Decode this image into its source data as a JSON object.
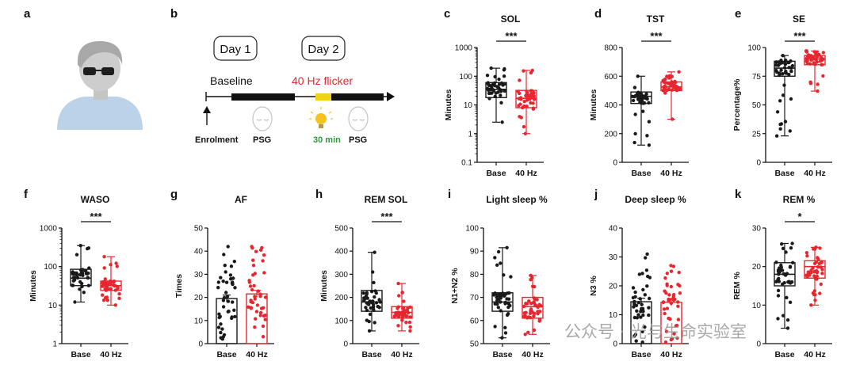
{
  "panel_letters": [
    "a",
    "b",
    "c",
    "d",
    "e",
    "f",
    "g",
    "h",
    "i",
    "j",
    "k"
  ],
  "colors": {
    "base": "#1a1a1a",
    "flicker": "#e8262f",
    "sleep_text": "#2a9a3a",
    "bar_yellow": "#f2d21a",
    "skin": "#c5c5c5",
    "shirt": "#bcd2e8"
  },
  "schematic": {
    "day1": "Day 1",
    "day2": "Day 2",
    "baseline": "Baseline",
    "flicker": "40 Hz flicker",
    "enrolment": "Enrolment",
    "psg1": "PSG",
    "duration": "30 min",
    "psg2": "PSG"
  },
  "watermark": "公众号 · 光与生命实验室",
  "chart_data": [
    {
      "panel": "c",
      "type": "box",
      "title": "SOL",
      "ylabel": "Minutes",
      "scale": "log",
      "ylim": [
        0.1,
        1000
      ],
      "yticks": [
        "0.1",
        "1",
        "10",
        "100",
        "1000"
      ],
      "categories": [
        "Base",
        "40 Hz"
      ],
      "significance": "***",
      "series": [
        {
          "name": "Base",
          "min": 2.5,
          "q1": 18,
          "median": 35,
          "q3": 60,
          "max": 190
        },
        {
          "name": "40 Hz",
          "min": 1.0,
          "q1": 8,
          "median": 17,
          "q3": 32,
          "max": 160
        }
      ]
    },
    {
      "panel": "d",
      "type": "box",
      "title": "TST",
      "ylabel": "Minutes",
      "scale": "linear",
      "ylim": [
        0,
        800
      ],
      "yticks": [
        "0",
        "200",
        "400",
        "600",
        "800"
      ],
      "categories": [
        "Base",
        "40 Hz"
      ],
      "significance": "***",
      "series": [
        {
          "name": "Base",
          "min": 120,
          "q1": 410,
          "median": 460,
          "q3": 490,
          "max": 600
        },
        {
          "name": "40 Hz",
          "min": 300,
          "q1": 500,
          "median": 525,
          "q3": 560,
          "max": 630
        }
      ]
    },
    {
      "panel": "e",
      "type": "box",
      "title": "SE",
      "ylabel": "Percentage%",
      "scale": "linear",
      "ylim": [
        0,
        100
      ],
      "yticks": [
        "0",
        "25",
        "50",
        "75",
        "100"
      ],
      "categories": [
        "Base",
        "40 Hz"
      ],
      "significance": "***",
      "series": [
        {
          "name": "Base",
          "min": 23,
          "q1": 75,
          "median": 82,
          "q3": 88,
          "max": 93
        },
        {
          "name": "40 Hz",
          "min": 62,
          "q1": 85,
          "median": 90,
          "q3": 93,
          "max": 97
        }
      ]
    },
    {
      "panel": "f",
      "type": "box",
      "title": "WASO",
      "ylabel": "Minutes",
      "scale": "log",
      "ylim": [
        1,
        1000
      ],
      "yticks": [
        "1",
        "10",
        "100",
        "1000"
      ],
      "categories": [
        "Base",
        "40 Hz"
      ],
      "significance": "***",
      "series": [
        {
          "name": "Base",
          "min": 12,
          "q1": 32,
          "median": 50,
          "q3": 85,
          "max": 350
        },
        {
          "name": "40 Hz",
          "min": 10,
          "q1": 24,
          "median": 32,
          "q3": 42,
          "max": 180
        }
      ]
    },
    {
      "panel": "g",
      "type": "bar",
      "title": "AF",
      "ylabel": "Times",
      "scale": "linear",
      "ylim": [
        0,
        50
      ],
      "yticks": [
        "0",
        "10",
        "20",
        "30",
        "40",
        "50"
      ],
      "categories": [
        "Base",
        "40 Hz"
      ],
      "significance": "",
      "series": [
        {
          "name": "Base",
          "mean": 19.5,
          "sem": 1.5,
          "min": 2,
          "max": 42
        },
        {
          "name": "40 Hz",
          "mean": 21.5,
          "sem": 1.5,
          "min": 3,
          "max": 42
        }
      ]
    },
    {
      "panel": "h",
      "type": "box",
      "title": "REM SOL",
      "ylabel": "Minutes",
      "scale": "linear",
      "ylim": [
        0,
        500
      ],
      "yticks": [
        "0",
        "100",
        "200",
        "300",
        "400",
        "500"
      ],
      "categories": [
        "Base",
        "40 Hz"
      ],
      "significance": "***",
      "series": [
        {
          "name": "Base",
          "min": 55,
          "q1": 140,
          "median": 180,
          "q3": 230,
          "max": 395
        },
        {
          "name": "40 Hz",
          "min": 55,
          "q1": 110,
          "median": 135,
          "q3": 160,
          "max": 260
        }
      ]
    },
    {
      "panel": "i",
      "type": "box",
      "title": "Light sleep %",
      "ylabel": "N1+N2 %",
      "scale": "linear",
      "ylim": [
        50,
        100
      ],
      "yticks": [
        "50",
        "60",
        "70",
        "80",
        "90",
        "100"
      ],
      "categories": [
        "Base",
        "40 Hz"
      ],
      "significance": "",
      "series": [
        {
          "name": "Base",
          "min": 52.5,
          "q1": 64,
          "median": 68,
          "q3": 72,
          "max": 91.5
        },
        {
          "name": "40 Hz",
          "min": 54,
          "q1": 61,
          "median": 66,
          "q3": 70,
          "max": 79.5
        }
      ]
    },
    {
      "panel": "j",
      "type": "bar",
      "title": "Deep sleep %",
      "ylabel": "N3 %",
      "scale": "linear",
      "ylim": [
        0,
        40
      ],
      "yticks": [
        "0",
        "10",
        "20",
        "30",
        "40"
      ],
      "categories": [
        "Base",
        "40 Hz"
      ],
      "significance": "",
      "series": [
        {
          "name": "Base",
          "mean": 14.5,
          "sem": 1.2,
          "min": 0.5,
          "max": 31
        },
        {
          "name": "40 Hz",
          "mean": 14.3,
          "sem": 1.2,
          "min": 0.5,
          "max": 27
        }
      ]
    },
    {
      "panel": "k",
      "type": "box",
      "title": "REM %",
      "ylabel": "REM %",
      "scale": "linear",
      "ylim": [
        0,
        30
      ],
      "yticks": [
        "0",
        "10",
        "20",
        "30"
      ],
      "categories": [
        "Base",
        "40 Hz"
      ],
      "significance": "*",
      "series": [
        {
          "name": "Base",
          "min": 4,
          "q1": 15,
          "median": 18,
          "q3": 21,
          "max": 26
        },
        {
          "name": "40 Hz",
          "min": 10,
          "q1": 17,
          "median": 20,
          "q3": 21.5,
          "max": 25
        }
      ]
    }
  ]
}
